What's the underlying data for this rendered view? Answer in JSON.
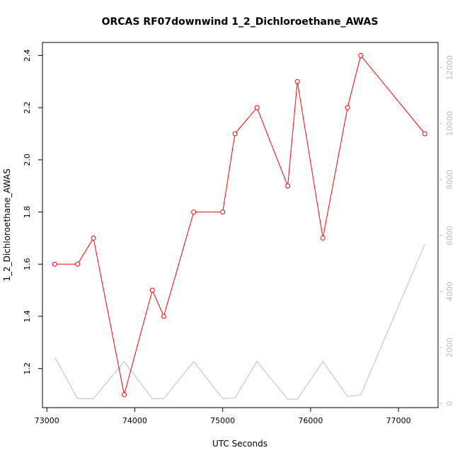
{
  "chart_data": {
    "type": "line",
    "title": "ORCAS RF07downwind 1_2_Dichloroethane_AWAS",
    "xlabel": "UTC Seconds",
    "ylabel": "1_2_Dichloroethane_AWAS",
    "xlim": [
      72950,
      77450
    ],
    "ylim": [
      1.05,
      2.45
    ],
    "y2lim": [
      -150,
      12900
    ],
    "x_ticks": [
      73000,
      74000,
      75000,
      76000,
      77000
    ],
    "y_ticks": [
      1.2,
      1.4,
      1.6,
      1.8,
      2.0,
      2.2,
      2.4
    ],
    "y2_ticks": [
      0,
      2000,
      4000,
      6000,
      8000,
      10000,
      12000
    ],
    "colors": {
      "primary": "#ff0000",
      "secondary": "#bebebe",
      "axis": "#000000"
    },
    "series": [
      {
        "axis": "left",
        "color": "#ff0000",
        "marker": "open-circle",
        "x": [
          73090,
          73350,
          73530,
          73880,
          74200,
          74330,
          74670,
          75000,
          75140,
          75390,
          75740,
          75850,
          76140,
          76420,
          76570,
          77300
        ],
        "y": [
          1.6,
          1.6,
          1.7,
          1.1,
          1.5,
          1.4,
          1.8,
          1.8,
          2.1,
          2.2,
          1.9,
          2.3,
          1.7,
          2.2,
          2.4,
          2.1
        ]
      },
      {
        "axis": "right",
        "color": "#bebebe",
        "marker": "none",
        "x": [
          73090,
          73350,
          73530,
          73880,
          74200,
          74330,
          74670,
          75000,
          75140,
          75390,
          75740,
          75850,
          76140,
          76420,
          76570,
          77300
        ],
        "y": [
          1650,
          170,
          170,
          1500,
          170,
          170,
          1500,
          170,
          200,
          1500,
          150,
          150,
          1500,
          250,
          300,
          5700
        ]
      }
    ]
  }
}
